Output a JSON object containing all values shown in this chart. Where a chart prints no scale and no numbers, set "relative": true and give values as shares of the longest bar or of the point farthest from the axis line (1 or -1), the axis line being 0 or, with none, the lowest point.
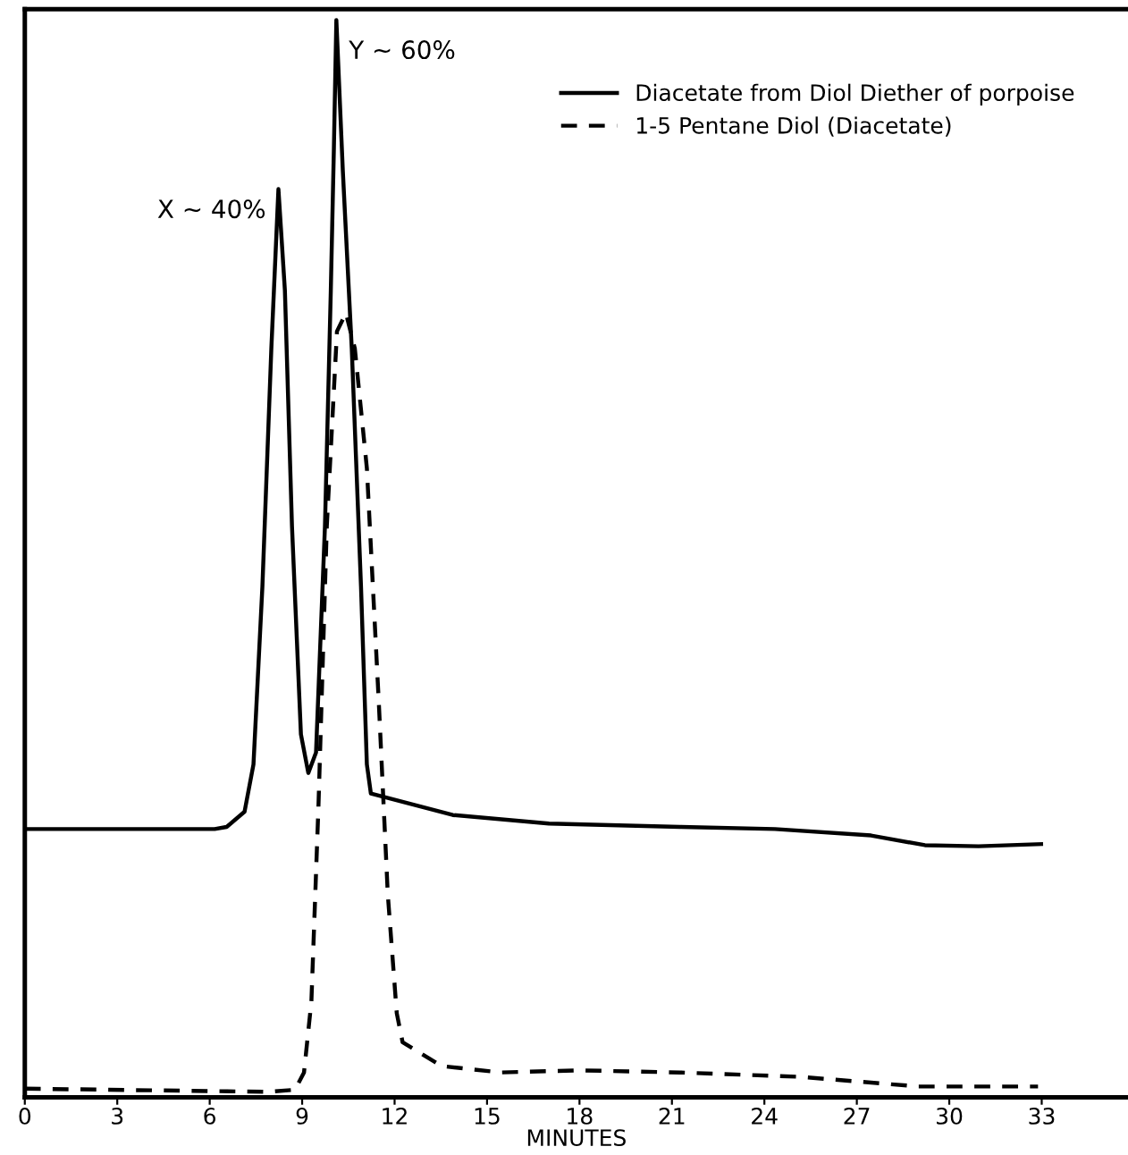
{
  "chart_data": {
    "type": "line",
    "relative": true,
    "xlabel": "MINUTES",
    "xlim": [
      0,
      35.8
    ],
    "xticks": [
      0,
      3,
      6,
      9,
      12,
      15,
      18,
      21,
      24,
      27,
      30,
      33
    ],
    "legend": "top right",
    "grid": false,
    "annotations": [
      {
        "text": "X ∼ 40%",
        "x": 8.23,
        "y": 0.843
      },
      {
        "text": "Y ∼ 60%",
        "x": 10.11,
        "y": 1.0
      }
    ],
    "series": [
      {
        "name": "Diacetate from Diol Diether of porpoise",
        "color": "#000000",
        "line_style": "solid",
        "x": [
          0,
          6.16,
          6.55,
          7.13,
          7.42,
          7.71,
          8.0,
          8.23,
          8.44,
          8.67,
          8.96,
          9.2,
          9.45,
          9.74,
          9.93,
          10.03,
          10.11,
          10.32,
          10.61,
          10.91,
          11.1,
          11.23,
          13.89,
          17.01,
          21.26,
          24.34,
          27.46,
          29.21,
          30.95,
          32.98
        ],
        "values": [
          0.249,
          0.249,
          0.251,
          0.265,
          0.309,
          0.474,
          0.695,
          0.843,
          0.749,
          0.53,
          0.337,
          0.301,
          0.32,
          0.53,
          0.749,
          0.881,
          1.0,
          0.86,
          0.695,
          0.474,
          0.309,
          0.282,
          0.262,
          0.254,
          0.251,
          0.249,
          0.243,
          0.234,
          0.233,
          0.235
        ]
      },
      {
        "name": "1-5 Pentane Diol (Diacetate)",
        "color": "#000000",
        "line_style": "dashed",
        "x": [
          0,
          7.9,
          8.77,
          9.06,
          9.3,
          9.53,
          9.8,
          10.13,
          10.42,
          10.71,
          11.1,
          11.49,
          11.78,
          12.07,
          12.26,
          13.52,
          15.45,
          17.95,
          21.26,
          25.14,
          28.99,
          32.88
        ],
        "values": [
          0.008,
          0.005,
          0.007,
          0.023,
          0.089,
          0.271,
          0.53,
          0.711,
          0.728,
          0.695,
          0.584,
          0.365,
          0.188,
          0.078,
          0.051,
          0.029,
          0.023,
          0.025,
          0.023,
          0.019,
          0.01,
          0.01
        ]
      }
    ]
  }
}
